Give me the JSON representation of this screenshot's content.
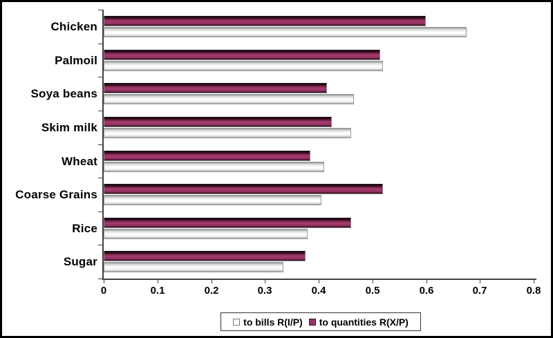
{
  "chart_data": {
    "type": "bar",
    "orientation": "horizontal",
    "title": "",
    "xlabel": "",
    "ylabel": "",
    "xlim": [
      0,
      0.8
    ],
    "x_tick_labels": [
      "0",
      "0.1",
      "0.2",
      "0.3",
      "0.4",
      "0.5",
      "0.6",
      "0.7",
      "0.8"
    ],
    "grid": false,
    "legend_position": "bottom-center",
    "categories": [
      "Chicken",
      "Palmoil",
      "Soya beans",
      "Skim milk",
      "Wheat",
      "Coarse Grains",
      "Rice",
      "Sugar"
    ],
    "series": [
      {
        "name": "to bills R(I/P)",
        "color": "#ffffff",
        "values": [
          0.675,
          0.52,
          0.465,
          0.46,
          0.41,
          0.405,
          0.38,
          0.335
        ]
      },
      {
        "name": "to quantities R(X/P)",
        "color": "#993366",
        "values": [
          0.6,
          0.515,
          0.415,
          0.425,
          0.385,
          0.52,
          0.46,
          0.375
        ]
      }
    ],
    "bar_group_order_top_to_bottom": [
      "to quantities R(X/P)",
      "to bills R(I/P)"
    ]
  },
  "legend": {
    "items": [
      {
        "label": "to bills R(I/P)",
        "swatch_color": "#ffffff"
      },
      {
        "label": "to quantities R(X/P)",
        "swatch_color": "#993366"
      }
    ]
  },
  "colors": {
    "axis": "#3f3f3f",
    "frame_border": "#000000",
    "background": "#ffffff",
    "series_bills": "#ffffff",
    "series_quantities": "#993366"
  }
}
